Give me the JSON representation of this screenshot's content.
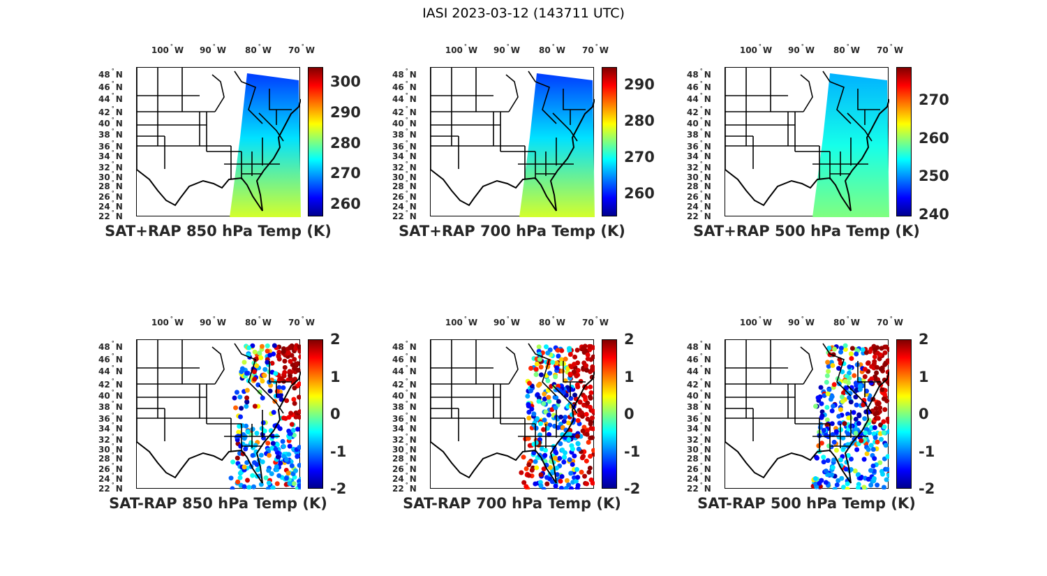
{
  "title": "IASI 2023-03-12 (143711 UTC)",
  "lon_labels": [
    {
      "deg": "100",
      "hem": "W"
    },
    {
      "deg": "90",
      "hem": "W"
    },
    {
      "deg": "80",
      "hem": "W"
    },
    {
      "deg": "70",
      "hem": "W"
    }
  ],
  "lat_labels": [
    {
      "deg": "48",
      "hem": "N"
    },
    {
      "deg": "46",
      "hem": "N"
    },
    {
      "deg": "44",
      "hem": "N"
    },
    {
      "deg": "42",
      "hem": "N"
    },
    {
      "deg": "40",
      "hem": "N"
    },
    {
      "deg": "38",
      "hem": "N"
    },
    {
      "deg": "36",
      "hem": "N"
    },
    {
      "deg": "34",
      "hem": "N"
    },
    {
      "deg": "32",
      "hem": "N"
    },
    {
      "deg": "30",
      "hem": "N"
    },
    {
      "deg": "28",
      "hem": "N"
    },
    {
      "deg": "26",
      "hem": "N"
    },
    {
      "deg": "24",
      "hem": "N"
    },
    {
      "deg": "22",
      "hem": "N"
    }
  ],
  "panels": [
    {
      "title": "SAT+RAP 850 hPa Temp (K)",
      "kind": "total",
      "cbar_range": [
        255.9,
        304.8
      ],
      "cbar_ticks": [
        "260",
        "270",
        "280",
        "290",
        "300"
      ]
    },
    {
      "title": "SAT+RAP 700 hPa Temp (K)",
      "kind": "total",
      "cbar_range": [
        253.7,
        294.8
      ],
      "cbar_ticks": [
        "260",
        "270",
        "280",
        "290"
      ]
    },
    {
      "title": "SAT+RAP 500 hPa Temp (K)",
      "kind": "total",
      "cbar_range": [
        239.5,
        278.5
      ],
      "cbar_ticks": [
        "240",
        "250",
        "260",
        "270"
      ]
    },
    {
      "title": "SAT-RAP 850 hPa Temp (K)",
      "kind": "diff",
      "cbar_range": [
        -2,
        2
      ],
      "cbar_ticks": [
        "-2",
        "-1",
        "0",
        "1",
        "2"
      ]
    },
    {
      "title": "SAT-RAP 700 hPa Temp (K)",
      "kind": "diff",
      "cbar_range": [
        -2,
        2
      ],
      "cbar_ticks": [
        "-2",
        "-1",
        "0",
        "1",
        "2"
      ]
    },
    {
      "title": "SAT-RAP 500 hPa Temp (K)",
      "kind": "diff",
      "cbar_range": [
        -2,
        2
      ],
      "cbar_ticks": [
        "-2",
        "-1",
        "0",
        "1",
        "2"
      ]
    }
  ],
  "colormap": [
    "#00008f",
    "#0000ff",
    "#00ffff",
    "#ffff00",
    "#ff0000",
    "#800000"
  ]
}
